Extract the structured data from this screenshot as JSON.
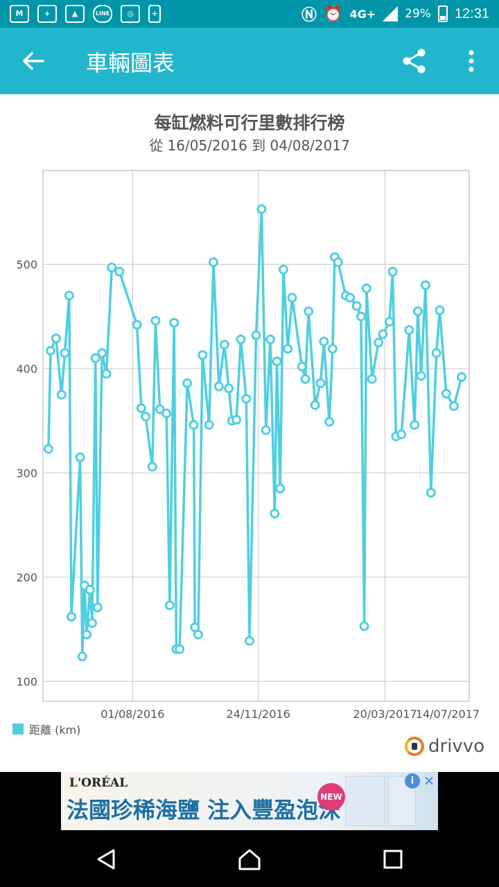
{
  "status_bar": {
    "left_icons": [
      "gmail-icon",
      "photos-icon",
      "gallery-icon",
      "line-icon",
      "instagram-icon",
      "battery-saver-icon"
    ],
    "network": "4G+",
    "battery": "29%",
    "time": "12:31"
  },
  "app_bar": {
    "title": "車輛圖表",
    "back_icon": "arrow-left-icon",
    "share_icon": "share-icon",
    "more_icon": "more-vert-icon"
  },
  "chart_header": {
    "title": "每缸燃料可行里數排行榜",
    "subtitle": "從 16/05/2016 到 04/08/2017"
  },
  "legend": {
    "label": "距離 (km)",
    "color": "#4fcfe0"
  },
  "brand": {
    "name": "drivvo"
  },
  "ad": {
    "brand": "L'ORÉAL",
    "headline": "法國珍稀海鹽 注入豐盈泡沫",
    "badge": "NEW",
    "info": "i",
    "close": "✕"
  },
  "nav_bar": {
    "icons": [
      "back-triangle-icon",
      "home-icon",
      "recents-icon"
    ]
  },
  "chart_data": {
    "type": "line",
    "title": "每缸燃料可行里數排行榜",
    "subtitle": "從 16/05/2016 到 04/08/2017",
    "series": [
      {
        "name": "距離 (km)",
        "color": "#4fcfe0",
        "points": [
          [
            "2016-05-16",
            323
          ],
          [
            "2016-05-18",
            417
          ],
          [
            "2016-05-23",
            429
          ],
          [
            "2016-05-28",
            375
          ],
          [
            "2016-05-31",
            415
          ],
          [
            "2016-06-04",
            470
          ],
          [
            "2016-06-06",
            162
          ],
          [
            "2016-06-14",
            315
          ],
          [
            "2016-06-16",
            124
          ],
          [
            "2016-06-18",
            192
          ],
          [
            "2016-06-20",
            145
          ],
          [
            "2016-06-23",
            188
          ],
          [
            "2016-06-25",
            156
          ],
          [
            "2016-06-28",
            410
          ],
          [
            "2016-06-30",
            171
          ],
          [
            "2016-07-04",
            415
          ],
          [
            "2016-07-08",
            395
          ],
          [
            "2016-07-13",
            497
          ],
          [
            "2016-07-20",
            493
          ],
          [
            "2016-08-05",
            442
          ],
          [
            "2016-08-09",
            362
          ],
          [
            "2016-08-13",
            354
          ],
          [
            "2016-08-19",
            306
          ],
          [
            "2016-08-22",
            446
          ],
          [
            "2016-08-26",
            361
          ],
          [
            "2016-09-01",
            357
          ],
          [
            "2016-09-04",
            173
          ],
          [
            "2016-09-08",
            444
          ],
          [
            "2016-09-10",
            131
          ],
          [
            "2016-09-13",
            131
          ],
          [
            "2016-09-20",
            386
          ],
          [
            "2016-09-26",
            346
          ],
          [
            "2016-09-27",
            152
          ],
          [
            "2016-09-30",
            145
          ],
          [
            "2016-10-04",
            413
          ],
          [
            "2016-10-10",
            346
          ],
          [
            "2016-10-14",
            502
          ],
          [
            "2016-10-19",
            383
          ],
          [
            "2016-10-24",
            423
          ],
          [
            "2016-10-28",
            381
          ],
          [
            "2016-10-31",
            350
          ],
          [
            "2016-11-04",
            351
          ],
          [
            "2016-11-08",
            428
          ],
          [
            "2016-11-13",
            371
          ],
          [
            "2016-11-16",
            139
          ],
          [
            "2016-11-22",
            432
          ],
          [
            "2016-11-27",
            553
          ],
          [
            "2016-12-01",
            341
          ],
          [
            "2016-12-05",
            428
          ],
          [
            "2016-12-09",
            261
          ],
          [
            "2016-12-11",
            407
          ],
          [
            "2016-12-14",
            285
          ],
          [
            "2016-12-17",
            495
          ],
          [
            "2016-12-21",
            419
          ],
          [
            "2016-12-25",
            468
          ],
          [
            "2017-01-03",
            402
          ],
          [
            "2017-01-06",
            390
          ],
          [
            "2017-01-09",
            455
          ],
          [
            "2017-01-15",
            365
          ],
          [
            "2017-01-20",
            386
          ],
          [
            "2017-01-23",
            426
          ],
          [
            "2017-01-28",
            349
          ],
          [
            "2017-01-31",
            419
          ],
          [
            "2017-02-02",
            507
          ],
          [
            "2017-02-05",
            502
          ],
          [
            "2017-02-12",
            470
          ],
          [
            "2017-02-16",
            468
          ],
          [
            "2017-02-22",
            460
          ],
          [
            "2017-02-26",
            450
          ],
          [
            "2017-03-01",
            153
          ],
          [
            "2017-03-03",
            477
          ],
          [
            "2017-03-08",
            390
          ],
          [
            "2017-03-14",
            425
          ],
          [
            "2017-03-18",
            433
          ],
          [
            "2017-03-24",
            445
          ],
          [
            "2017-03-27",
            493
          ],
          [
            "2017-03-30",
            335
          ],
          [
            "2017-04-04",
            337
          ],
          [
            "2017-04-11",
            437
          ],
          [
            "2017-04-16",
            346
          ],
          [
            "2017-04-19",
            455
          ],
          [
            "2017-04-22",
            393
          ],
          [
            "2017-04-26",
            480
          ],
          [
            "2017-05-01",
            281
          ],
          [
            "2017-05-06",
            415
          ],
          [
            "2017-05-09",
            456
          ],
          [
            "2017-05-15",
            376
          ],
          [
            "2017-05-22",
            364
          ],
          [
            "2017-05-29",
            392
          ]
        ]
      }
    ],
    "x_ticks": [
      "01/08/2016",
      "24/11/2016",
      "20/03/2017",
      "14/07/2017"
    ],
    "y_ticks": [
      100,
      200,
      300,
      400,
      500
    ],
    "ylim": [
      81,
      590
    ],
    "grid": true,
    "legend_position": "bottom-left"
  }
}
